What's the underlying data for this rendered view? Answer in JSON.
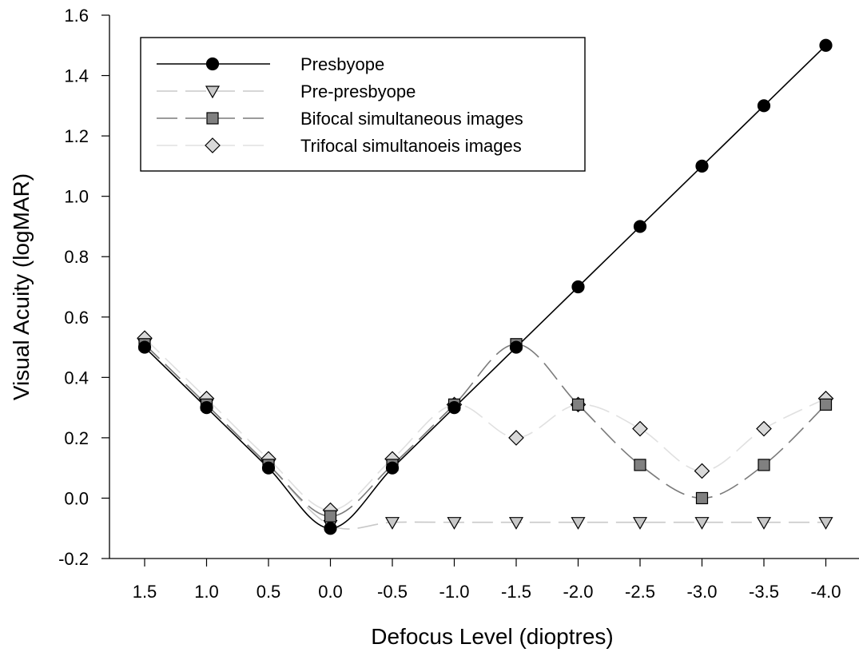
{
  "chart_data": {
    "type": "line",
    "xlabel": "Defocus Level (dioptres)",
    "ylabel": "Visual Acuity (logMAR)",
    "x": [
      1.5,
      1.0,
      0.5,
      0.0,
      -0.5,
      -1.0,
      -1.5,
      -2.0,
      -2.5,
      -3.0,
      -3.5,
      -4.0
    ],
    "x_tick_labels": [
      "1.5",
      "1.0",
      "0.5",
      "0.0",
      "-0.5",
      "-1.0",
      "-1.5",
      "-2.0",
      "-2.5",
      "-3.0",
      "-3.5",
      "-4.0"
    ],
    "ylim": [
      -0.2,
      1.6
    ],
    "y_ticks": [
      -0.2,
      0.0,
      0.2,
      0.4,
      0.6,
      0.8,
      1.0,
      1.2,
      1.4,
      1.6
    ],
    "y_tick_labels": [
      "-0.2",
      "0.0",
      "0.2",
      "0.4",
      "0.6",
      "0.8",
      "1.0",
      "1.2",
      "1.4",
      "1.6"
    ],
    "grid": false,
    "legend_position": "top-left",
    "series": [
      {
        "name": "Presbyope",
        "marker": "circle",
        "line_color": "#000000",
        "marker_fill": "#000000",
        "dash": "solid",
        "values": [
          0.5,
          0.3,
          0.1,
          -0.1,
          0.1,
          0.3,
          0.5,
          0.7,
          0.9,
          1.1,
          1.3,
          1.5
        ]
      },
      {
        "name": "Pre-presbyope",
        "marker": "triangle-down",
        "line_color": "#c8c8c8",
        "marker_fill": "#c8c8c8",
        "dash": "long-dash",
        "values": [
          0.51,
          0.31,
          0.11,
          -0.09,
          -0.08,
          -0.08,
          -0.08,
          -0.08,
          -0.08,
          -0.08,
          -0.08,
          -0.08
        ]
      },
      {
        "name": "Bifocal simultaneous images",
        "marker": "square",
        "line_color": "#7a7a7a",
        "marker_fill": "#808080",
        "dash": "long-dash",
        "values": [
          0.51,
          0.31,
          0.11,
          -0.06,
          0.11,
          0.31,
          0.51,
          0.31,
          0.11,
          0.0,
          0.11,
          0.31
        ]
      },
      {
        "name": "Trifocal simultanoeis images",
        "marker": "diamond",
        "line_color": "#e0e0e0",
        "marker_fill": "#d9d9d9",
        "dash": "long-dash",
        "values": [
          0.53,
          0.33,
          0.13,
          -0.04,
          0.13,
          0.31,
          0.2,
          0.31,
          0.23,
          0.09,
          0.23,
          0.33
        ]
      }
    ]
  }
}
